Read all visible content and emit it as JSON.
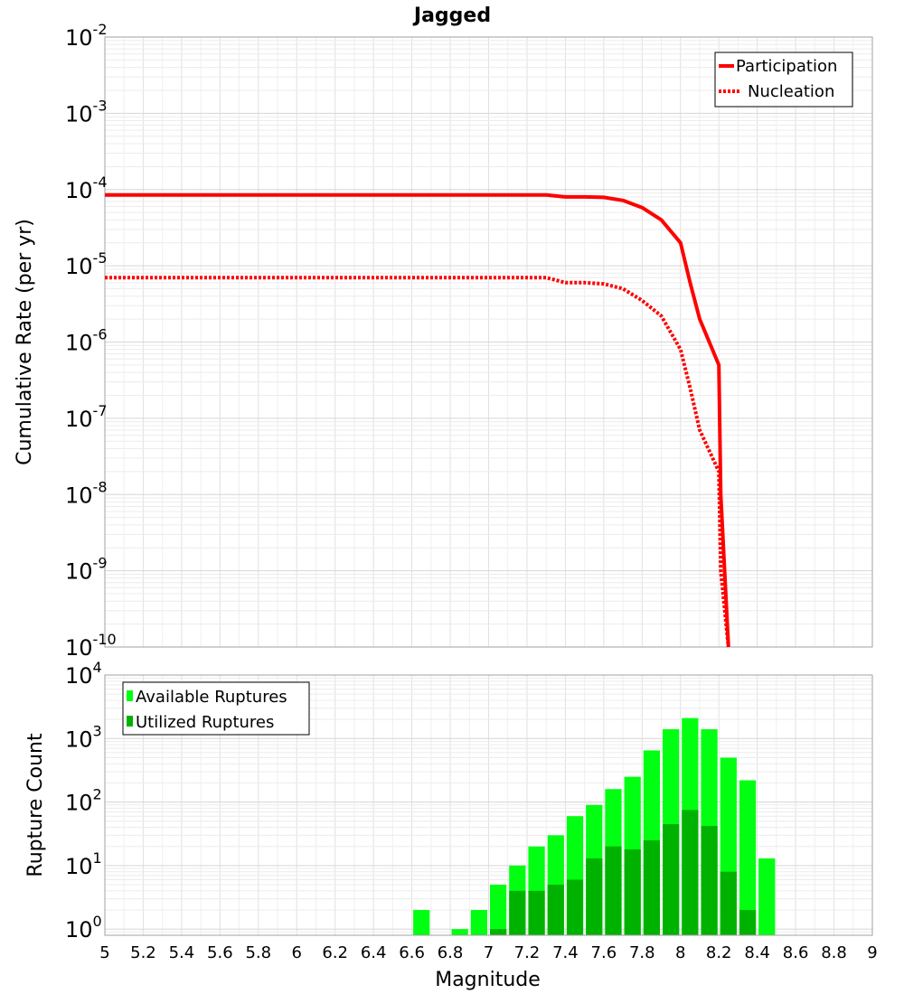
{
  "chart_data": [
    {
      "type": "line",
      "title": "Jagged",
      "xlabel": "",
      "ylabel": "Cumulative Rate (per yr)",
      "yscale": "log",
      "xlim": [
        5,
        9
      ],
      "ylim": [
        1e-10,
        0.01
      ],
      "ytick_bases": [
        "10",
        "10",
        "10",
        "10",
        "10",
        "10",
        "10",
        "10",
        "10"
      ],
      "ytick_exponents": [
        "-10",
        "-9",
        "-8",
        "-7",
        "-6",
        "-5",
        "-4",
        "-3",
        "-2"
      ],
      "grid": true,
      "legend_position": "top-right",
      "colors": {
        "line": "#ff0000"
      },
      "series": [
        {
          "name": "Participation",
          "style": "solid",
          "x": [
            5.0,
            7.3,
            7.4,
            7.5,
            7.6,
            7.7,
            7.8,
            7.9,
            8.0,
            8.05,
            8.1,
            8.2,
            8.21,
            8.25
          ],
          "values": [
            8.5e-05,
            8.5e-05,
            8e-05,
            8e-05,
            7.9e-05,
            7.2e-05,
            5.8e-05,
            4e-05,
            2e-05,
            6e-06,
            2e-06,
            5e-07,
            1e-08,
            1e-10
          ]
        },
        {
          "name": "Nucleation",
          "style": "dotted",
          "x": [
            5.0,
            7.3,
            7.4,
            7.5,
            7.6,
            7.7,
            7.8,
            7.9,
            8.0,
            8.05,
            8.1,
            8.2,
            8.21,
            8.25
          ],
          "values": [
            7e-06,
            7e-06,
            6e-06,
            6e-06,
            5.8e-06,
            5e-06,
            3.5e-06,
            2.2e-06,
            8e-07,
            2.5e-07,
            7e-08,
            2e-08,
            1e-09,
            1e-10
          ]
        }
      ]
    },
    {
      "type": "bar",
      "title": "",
      "xlabel": "Magnitude",
      "ylabel": "Rupture Count",
      "yscale": "log",
      "xlim": [
        5,
        9
      ],
      "ylim": [
        0.8,
        10000
      ],
      "ytick_bases": [
        "10",
        "10",
        "10",
        "10",
        "10"
      ],
      "ytick_exponents": [
        "0",
        "1",
        "2",
        "3",
        "4"
      ],
      "xtick_labels": [
        "5",
        "5.2",
        "5.4",
        "5.6",
        "5.8",
        "6",
        "6.2",
        "6.4",
        "6.6",
        "6.8",
        "7",
        "7.2",
        "7.4",
        "7.6",
        "7.8",
        "8",
        "8.2",
        "8.4",
        "8.6",
        "8.8",
        "9"
      ],
      "grid": true,
      "legend_position": "top-left",
      "bin_width": 0.1,
      "colors": {
        "available": "#00ff11",
        "utilized": "#00b200"
      },
      "series": [
        {
          "name": "Available Ruptures",
          "x": [
            6.65,
            6.85,
            6.95,
            7.05,
            7.15,
            7.25,
            7.35,
            7.45,
            7.55,
            7.65,
            7.75,
            7.85,
            7.95,
            8.05,
            8.15,
            8.25,
            8.35,
            8.45
          ],
          "values": [
            2,
            1,
            2,
            5,
            10,
            20,
            30,
            60,
            90,
            160,
            250,
            650,
            1400,
            2100,
            1400,
            500,
            220,
            13
          ]
        },
        {
          "name": "Utilized Ruptures",
          "x": [
            7.05,
            7.15,
            7.25,
            7.35,
            7.45,
            7.55,
            7.65,
            7.75,
            7.85,
            7.95,
            8.05,
            8.15,
            8.25,
            8.35
          ],
          "values": [
            1,
            4,
            4,
            5,
            6,
            13,
            20,
            18,
            25,
            45,
            75,
            42,
            8,
            2
          ]
        }
      ]
    }
  ]
}
